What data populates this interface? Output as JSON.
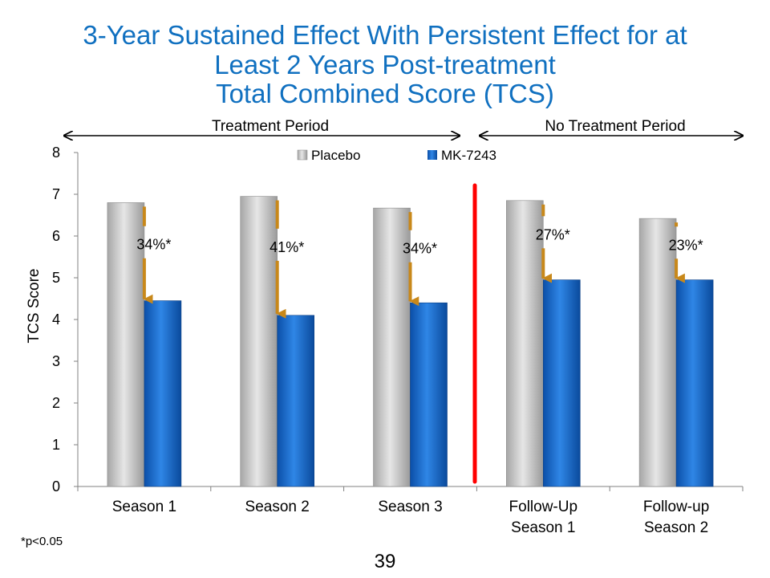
{
  "slide": {
    "title_lines": [
      "3-Year Sustained Effect With Persistent Effect for at",
      "Least 2 Years Post-treatment",
      "Total Combined Score (TCS)"
    ],
    "footnote": "*p<0.05",
    "page_number": "39"
  },
  "periods": {
    "treatment": "Treatment Period",
    "no_treatment": "No Treatment Period"
  },
  "chart_data": {
    "type": "bar",
    "ylabel": "TCS Score",
    "ylim": [
      0,
      8
    ],
    "yticks": [
      0,
      1,
      2,
      3,
      4,
      5,
      6,
      7,
      8
    ],
    "categories": [
      [
        "Season 1"
      ],
      [
        "Season 2"
      ],
      [
        "Season 3"
      ],
      [
        "Follow-Up",
        "Season 1"
      ],
      [
        "Follow-up",
        "Season 2"
      ]
    ],
    "series": [
      {
        "name": "Placebo",
        "color": "#bfbfbf",
        "values": [
          6.8,
          6.95,
          6.67,
          6.85,
          6.42
        ]
      },
      {
        "name": "MK-7243",
        "color": "#1f6fd0",
        "values": [
          4.45,
          4.1,
          4.4,
          4.95,
          4.95
        ]
      }
    ],
    "reduction_labels": [
      "34%*",
      "41%*",
      "34%*",
      "27%*",
      "23%*"
    ],
    "legend": "top-center",
    "arrow_color": "#c8881a",
    "divider_color": "#ff0000"
  }
}
